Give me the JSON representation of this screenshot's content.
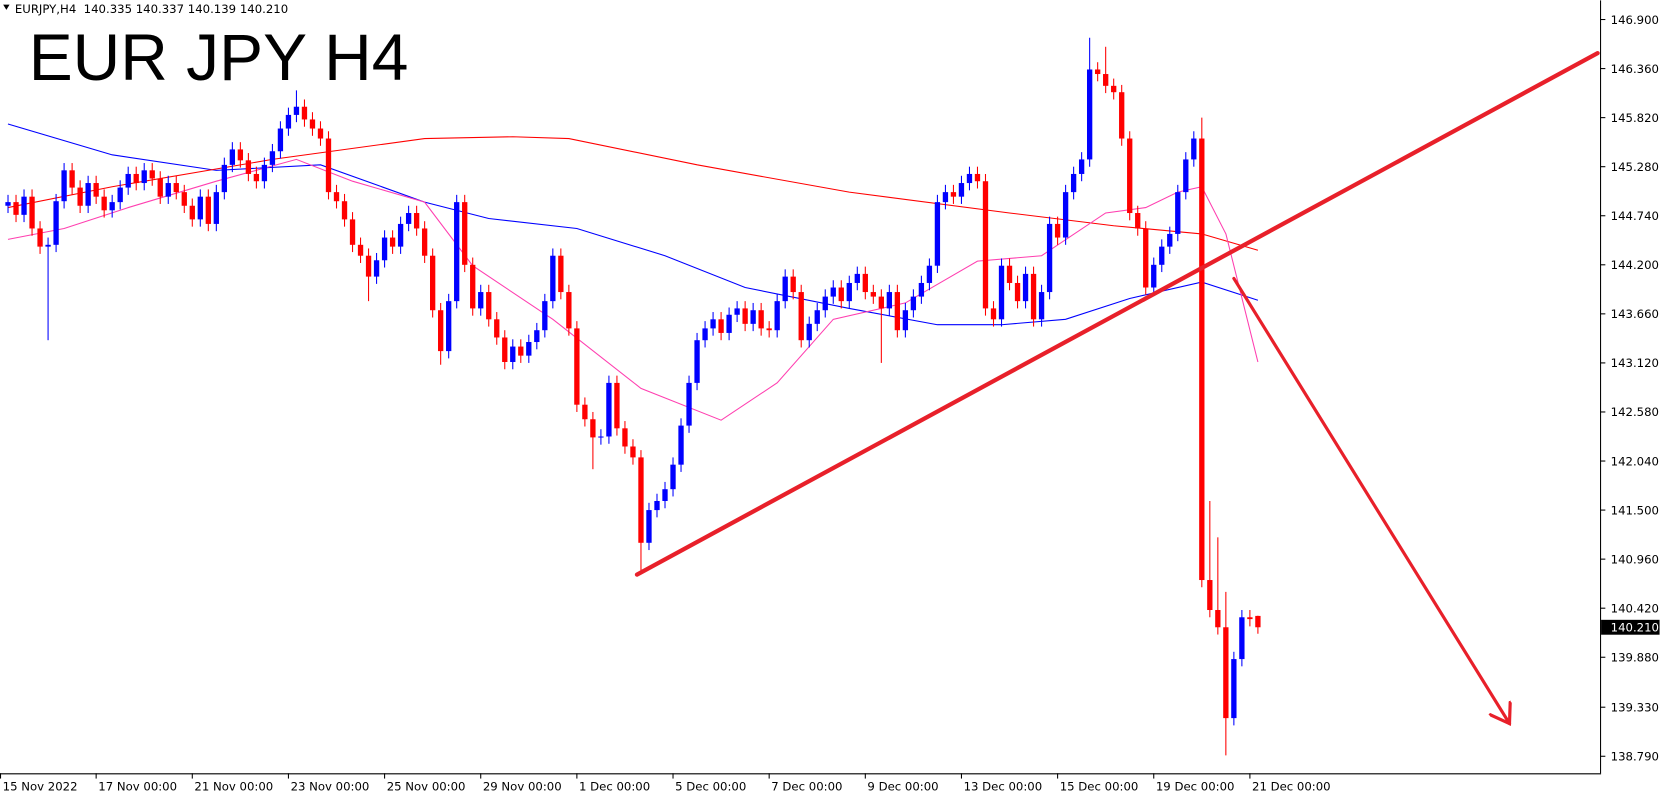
{
  "chart_data": {
    "type": "candlestick",
    "header": "EURJPY,H4  140.335 140.337 140.139 140.210",
    "title": "EUR JPY H4",
    "title_color": "#ff0000",
    "up_color": "#0000ff",
    "down_color": "#ff0000",
    "open": [
      144.85,
      144.89,
      144.75,
      144.95,
      144.6,
      144.4,
      144.42,
      144.9,
      145.24,
      145.05,
      144.85,
      145.1,
      144.95,
      144.8,
      144.89,
      145.05,
      145.2,
      145.1,
      145.24,
      145.15,
      144.95,
      145.1,
      145.0,
      144.85,
      144.7,
      144.95,
      144.65,
      145.0,
      145.3,
      145.47,
      145.35,
      145.2,
      145.12,
      145.3,
      145.45,
      145.7,
      145.85,
      145.94,
      145.8,
      145.7,
      145.59,
      145.0,
      144.9,
      144.7,
      144.42,
      144.3,
      144.07,
      144.25,
      144.5,
      144.4,
      144.65,
      144.77,
      144.6,
      144.3,
      143.7,
      143.25,
      143.8,
      144.89,
      144.2,
      143.72,
      143.9,
      143.6,
      143.4,
      143.13,
      143.3,
      143.2,
      143.35,
      143.48,
      143.8,
      144.3,
      143.9,
      143.5,
      142.66,
      142.5,
      142.3,
      142.31,
      142.9,
      142.4,
      142.2,
      142.08,
      141.14,
      141.5,
      141.6,
      141.73,
      142.0,
      142.43,
      142.9,
      143.37,
      143.5,
      143.6,
      143.45,
      143.65,
      143.72,
      143.55,
      143.7,
      143.5,
      143.48,
      143.8,
      144.07,
      143.9,
      143.37,
      143.55,
      143.7,
      143.85,
      143.95,
      143.8,
      144.0,
      144.1,
      143.9,
      143.85,
      143.72,
      143.9,
      143.48,
      143.7,
      143.85,
      144.0,
      144.19,
      144.89,
      145.0,
      144.95,
      145.1,
      145.2,
      145.12,
      143.72,
      143.6,
      144.19,
      144.0,
      143.8,
      144.1,
      143.6,
      143.9,
      144.65,
      144.5,
      145.0,
      145.2,
      145.36,
      146.35,
      146.3,
      146.17,
      146.1,
      145.59,
      144.77,
      144.6,
      143.95,
      144.2,
      144.4,
      144.54,
      145.0,
      145.36,
      145.59,
      140.73,
      140.4,
      140.21,
      139.21,
      139.86,
      140.32,
      140.335
    ],
    "high": [
      144.97,
      144.97,
      145.03,
      145.03,
      144.68,
      144.5,
      144.98,
      145.32,
      145.32,
      145.13,
      145.18,
      145.18,
      145.03,
      144.97,
      145.13,
      145.28,
      145.28,
      145.32,
      145.32,
      145.23,
      145.18,
      145.18,
      145.08,
      144.93,
      145.03,
      145.03,
      145.08,
      145.38,
      145.55,
      145.55,
      145.43,
      145.28,
      145.38,
      145.53,
      145.78,
      145.93,
      146.12,
      146.02,
      145.88,
      145.78,
      145.67,
      145.08,
      144.98,
      144.78,
      144.5,
      144.38,
      144.33,
      144.58,
      144.58,
      144.73,
      144.85,
      144.85,
      144.68,
      144.38,
      143.78,
      143.88,
      144.97,
      144.97,
      144.28,
      143.98,
      143.98,
      143.68,
      143.48,
      143.38,
      143.38,
      143.43,
      143.56,
      143.88,
      144.38,
      144.38,
      143.98,
      143.58,
      142.74,
      142.58,
      142.39,
      142.98,
      142.98,
      142.48,
      142.28,
      142.16,
      141.58,
      141.68,
      141.81,
      142.08,
      142.51,
      142.98,
      143.45,
      143.58,
      143.68,
      143.68,
      143.73,
      143.8,
      143.8,
      143.78,
      143.78,
      143.58,
      143.88,
      144.15,
      144.15,
      143.98,
      143.63,
      143.78,
      143.93,
      144.03,
      144.03,
      144.08,
      144.18,
      144.18,
      143.98,
      143.93,
      143.98,
      143.98,
      143.78,
      143.93,
      144.08,
      144.27,
      144.97,
      145.08,
      145.08,
      145.18,
      145.28,
      145.28,
      145.2,
      143.8,
      144.27,
      144.27,
      144.08,
      144.18,
      144.18,
      143.98,
      144.73,
      144.73,
      145.08,
      145.28,
      145.44,
      146.7,
      146.43,
      146.6,
      146.25,
      146.18,
      145.67,
      144.85,
      144.68,
      144.28,
      144.48,
      144.62,
      145.08,
      145.44,
      145.67,
      145.82,
      141.6,
      141.2,
      140.6,
      139.94,
      140.4,
      140.4,
      140.337
    ],
    "low": [
      144.77,
      144.67,
      144.67,
      144.52,
      144.32,
      143.37,
      144.34,
      144.82,
      144.97,
      144.77,
      144.77,
      144.87,
      144.72,
      144.72,
      144.81,
      144.97,
      145.02,
      145.02,
      145.07,
      144.87,
      144.87,
      144.92,
      144.77,
      144.62,
      144.62,
      144.57,
      144.57,
      144.92,
      145.22,
      145.27,
      145.12,
      145.04,
      145.04,
      145.22,
      145.37,
      145.62,
      145.77,
      145.72,
      145.62,
      145.51,
      144.92,
      144.82,
      144.62,
      144.34,
      144.22,
      143.8,
      143.99,
      144.17,
      144.32,
      144.32,
      144.57,
      144.52,
      144.22,
      143.62,
      143.1,
      143.17,
      143.72,
      144.12,
      143.64,
      143.64,
      143.52,
      143.32,
      143.05,
      143.05,
      143.12,
      143.12,
      143.27,
      143.4,
      143.72,
      143.82,
      143.42,
      142.58,
      142.42,
      141.95,
      142.22,
      142.23,
      142.32,
      142.12,
      142.0,
      140.79,
      141.06,
      141.42,
      141.52,
      141.65,
      141.92,
      142.35,
      142.82,
      143.29,
      143.42,
      143.37,
      143.37,
      143.57,
      143.47,
      143.47,
      143.42,
      143.4,
      143.4,
      143.72,
      143.82,
      143.29,
      143.29,
      143.47,
      143.62,
      143.77,
      143.72,
      143.72,
      143.92,
      143.82,
      143.77,
      143.12,
      143.64,
      143.4,
      143.4,
      143.62,
      143.77,
      143.92,
      144.11,
      144.81,
      144.87,
      144.87,
      145.02,
      145.04,
      143.64,
      143.52,
      143.52,
      143.92,
      143.72,
      143.72,
      143.52,
      143.52,
      143.82,
      144.42,
      144.42,
      144.92,
      145.12,
      145.28,
      146.22,
      146.09,
      146.02,
      145.51,
      144.69,
      144.52,
      143.87,
      143.87,
      144.12,
      144.32,
      144.46,
      144.92,
      145.28,
      140.65,
      140.32,
      140.13,
      138.8,
      139.13,
      139.78,
      140.22,
      140.139
    ],
    "close": [
      144.89,
      144.75,
      144.95,
      144.6,
      144.4,
      144.42,
      144.9,
      145.24,
      145.05,
      144.85,
      145.1,
      144.95,
      144.8,
      144.89,
      145.05,
      145.2,
      145.1,
      145.24,
      145.15,
      144.95,
      145.1,
      145.0,
      144.85,
      144.7,
      144.95,
      144.65,
      145.0,
      145.3,
      145.47,
      145.35,
      145.2,
      145.12,
      145.3,
      145.45,
      145.7,
      145.85,
      145.94,
      145.8,
      145.7,
      145.59,
      145.0,
      144.9,
      144.7,
      144.42,
      144.3,
      144.07,
      144.25,
      144.5,
      144.4,
      144.65,
      144.77,
      144.6,
      144.3,
      143.7,
      143.25,
      143.8,
      144.89,
      144.2,
      143.72,
      143.9,
      143.6,
      143.4,
      143.13,
      143.3,
      143.2,
      143.35,
      143.48,
      143.8,
      144.3,
      143.9,
      143.5,
      142.66,
      142.5,
      142.3,
      142.31,
      142.9,
      142.4,
      142.2,
      142.08,
      141.14,
      141.5,
      141.6,
      141.73,
      142.0,
      142.43,
      142.9,
      143.37,
      143.5,
      143.6,
      143.45,
      143.65,
      143.72,
      143.55,
      143.7,
      143.5,
      143.48,
      143.8,
      144.07,
      143.9,
      143.37,
      143.55,
      143.7,
      143.85,
      143.95,
      143.8,
      144.0,
      144.1,
      143.9,
      143.85,
      143.72,
      143.9,
      143.48,
      143.7,
      143.85,
      144.0,
      144.19,
      144.89,
      145.0,
      144.95,
      145.1,
      145.2,
      145.12,
      143.72,
      143.6,
      144.19,
      144.0,
      143.8,
      144.1,
      143.6,
      143.9,
      144.65,
      144.5,
      145.0,
      145.2,
      145.36,
      146.35,
      146.3,
      146.17,
      146.1,
      145.59,
      144.77,
      144.6,
      143.95,
      144.2,
      144.4,
      144.54,
      145.0,
      145.36,
      145.59,
      140.73,
      140.4,
      140.21,
      139.21,
      139.86,
      140.32,
      140.3,
      140.21
    ],
    "moving_averages": [
      {
        "color": "#0000ff",
        "x": [
          0,
          13,
          26,
          39,
          52,
          60,
          71,
          82,
          92,
          105,
          116,
          124,
          132,
          140,
          149,
          156
        ],
        "values": [
          145.75,
          145.41,
          145.24,
          145.3,
          144.89,
          144.71,
          144.6,
          144.3,
          143.95,
          143.72,
          143.54,
          143.54,
          143.6,
          143.83,
          144.01,
          143.81
        ]
      },
      {
        "color": "#ff0000",
        "x": [
          0,
          13,
          33,
          52,
          63,
          70,
          86,
          105,
          125,
          138,
          149,
          156
        ],
        "values": [
          144.83,
          145.06,
          145.36,
          145.59,
          145.61,
          145.59,
          145.3,
          145.0,
          144.77,
          144.63,
          144.54,
          144.36
        ]
      },
      {
        "color": "#ff3fb0",
        "x": [
          0,
          7,
          15,
          26,
          36,
          43,
          52,
          58,
          68,
          79,
          89,
          96,
          103,
          112,
          121,
          129,
          137,
          142,
          146,
          149,
          152,
          156
        ],
        "values": [
          144.48,
          144.6,
          144.83,
          145.12,
          145.36,
          145.12,
          144.89,
          144.19,
          143.6,
          142.84,
          142.49,
          142.9,
          143.6,
          143.78,
          144.24,
          144.3,
          144.77,
          144.83,
          145.0,
          145.06,
          144.54,
          143.13
        ]
      }
    ],
    "trendlines": [
      {
        "color": "#e8202a",
        "x": [
          78.5,
          198.4
        ],
        "y": [
          140.79,
          146.53
        ]
      },
      {
        "color": "#e8202a",
        "x": [
          153,
          187.4
        ],
        "y": [
          144.05,
          139.15
        ],
        "arrow": true
      }
    ],
    "xlim": [
      -1,
      198.7
    ],
    "xticks": [
      {
        "value": -1,
        "label": "15 Nov 2022"
      },
      {
        "value": 11,
        "label": "17 Nov 00:00"
      },
      {
        "value": 23,
        "label": "21 Nov 00:00"
      },
      {
        "value": 35,
        "label": "23 Nov 00:00"
      },
      {
        "value": 47,
        "label": "25 Nov 00:00"
      },
      {
        "value": 59,
        "label": "29 Nov 00:00"
      },
      {
        "value": 71,
        "label": "1 Dec 00:00"
      },
      {
        "value": 83,
        "label": "5 Dec 00:00"
      },
      {
        "value": 95,
        "label": "7 Dec 00:00"
      },
      {
        "value": 107,
        "label": "9 Dec 00:00"
      },
      {
        "value": 119,
        "label": "13 Dec 00:00"
      },
      {
        "value": 131,
        "label": "15 Dec 00:00"
      },
      {
        "value": 143,
        "label": "19 Dec 00:00"
      },
      {
        "value": 155,
        "label": "21 Dec 00:00"
      }
    ],
    "ylim": [
      138.603,
      147.111
    ],
    "yticks": [
      {
        "value": 146.9,
        "label": "146.900"
      },
      {
        "value": 146.36,
        "label": "146.360"
      },
      {
        "value": 145.82,
        "label": "145.820"
      },
      {
        "value": 145.28,
        "label": "145.280"
      },
      {
        "value": 144.74,
        "label": "144.740"
      },
      {
        "value": 144.2,
        "label": "144.200"
      },
      {
        "value": 143.66,
        "label": "143.660"
      },
      {
        "value": 143.12,
        "label": "143.120"
      },
      {
        "value": 142.58,
        "label": "142.580"
      },
      {
        "value": 142.04,
        "label": "142.040"
      },
      {
        "value": 141.5,
        "label": "141.500"
      },
      {
        "value": 140.96,
        "label": "140.960"
      },
      {
        "value": 140.42,
        "label": "140.420"
      },
      {
        "value": 139.88,
        "label": "139.880"
      },
      {
        "value": 139.33,
        "label": "139.330"
      },
      {
        "value": 138.79,
        "label": "138.790"
      }
    ],
    "last_price": {
      "value": 140.21,
      "label": "140.210"
    }
  }
}
